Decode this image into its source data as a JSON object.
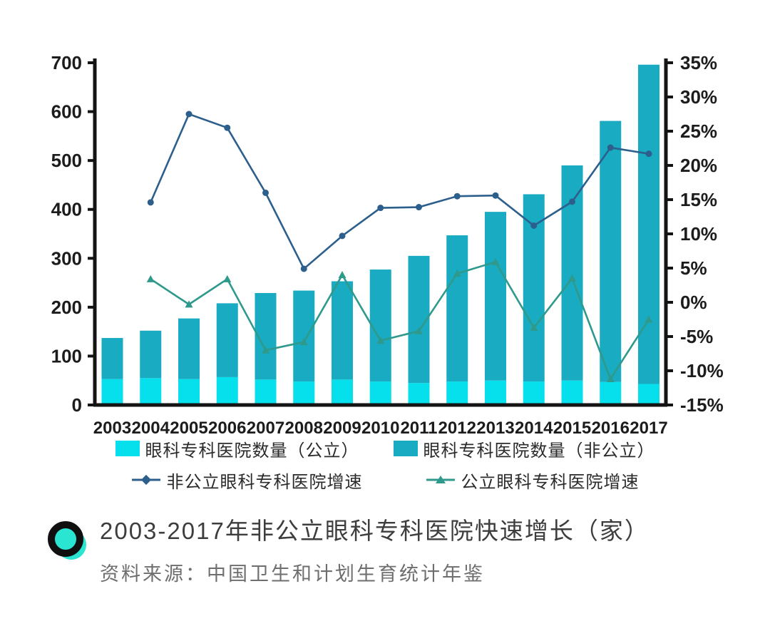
{
  "title": "2003-2017年非公立眼科专科医院快速增长（家）",
  "source": "资料来源：中国卫生和计划生育统计年鉴",
  "colors": {
    "public_bar": "#06dfec",
    "non_public_bar": "#18abc1",
    "non_public_line": "#2d5f8d",
    "public_line": "#2f9a8c",
    "axis": "#141414",
    "tick_label": "#1c1c1c",
    "title_text": "#3d3d3d",
    "source_text": "#6e6e6e",
    "bullet_ring": "#101010",
    "bullet_fill": "#2be5d3"
  },
  "chart_data": {
    "type": "bar",
    "subtype": "stacked-bars-with-lines",
    "categories": [
      "2003",
      "2004",
      "2005",
      "2006",
      "2007",
      "2008",
      "2009",
      "2010",
      "2011",
      "2012",
      "2013",
      "2014",
      "2015",
      "2016",
      "2017"
    ],
    "series": [
      {
        "name": "眼科专科医院数量（公立）",
        "type": "bar",
        "axis": "left",
        "color": "#06dfec",
        "values": [
          53,
          55,
          53,
          57,
          52,
          48,
          52,
          48,
          45,
          48,
          50,
          48,
          50,
          47,
          43
        ]
      },
      {
        "name": "眼科专科医院数量（非公立）",
        "type": "bar",
        "axis": "left",
        "color": "#18abc1",
        "values": [
          84,
          97,
          124,
          151,
          177,
          186,
          201,
          229,
          260,
          299,
          345,
          383,
          440,
          534,
          653
        ]
      },
      {
        "name": "非公立眼科专科医院增速",
        "type": "line",
        "axis": "right",
        "marker": "diamond",
        "color": "#2d5f8d",
        "values": [
          null,
          14.6,
          27.5,
          25.5,
          16.0,
          4.9,
          9.7,
          13.8,
          13.9,
          15.5,
          15.6,
          11.2,
          14.7,
          22.6,
          21.7
        ]
      },
      {
        "name": "公立眼科专科医院增速",
        "type": "line",
        "axis": "right",
        "marker": "triangle",
        "color": "#2f9a8c",
        "values": [
          null,
          3.4,
          -0.3,
          3.4,
          -7.0,
          -5.8,
          4.0,
          -5.6,
          -4.2,
          4.2,
          5.9,
          -3.7,
          3.5,
          -11.2,
          -2.5
        ]
      }
    ],
    "bar_totals": [
      137,
      152,
      177,
      208,
      229,
      234,
      253,
      277,
      305,
      347,
      395,
      431,
      490,
      581,
      696
    ],
    "left_axis": {
      "min": 0,
      "max": 700,
      "step": 100,
      "ticks": [
        "0",
        "100",
        "200",
        "300",
        "400",
        "500",
        "600",
        "700"
      ]
    },
    "right_axis": {
      "min": -15,
      "max": 35,
      "step": 5,
      "ticks": [
        "-15%",
        "-10%",
        "-5%",
        "0%",
        "5%",
        "10%",
        "15%",
        "20%",
        "25%",
        "30%",
        "35%"
      ]
    },
    "grid": false,
    "legend_position": "bottom"
  },
  "legend": {
    "items": [
      {
        "label": "眼科专科医院数量（公立）"
      },
      {
        "label": "眼科专科医院数量（非公立）"
      },
      {
        "label": "非公立眼科专科医院增速"
      },
      {
        "label": "公立眼科专科医院增速"
      }
    ]
  }
}
